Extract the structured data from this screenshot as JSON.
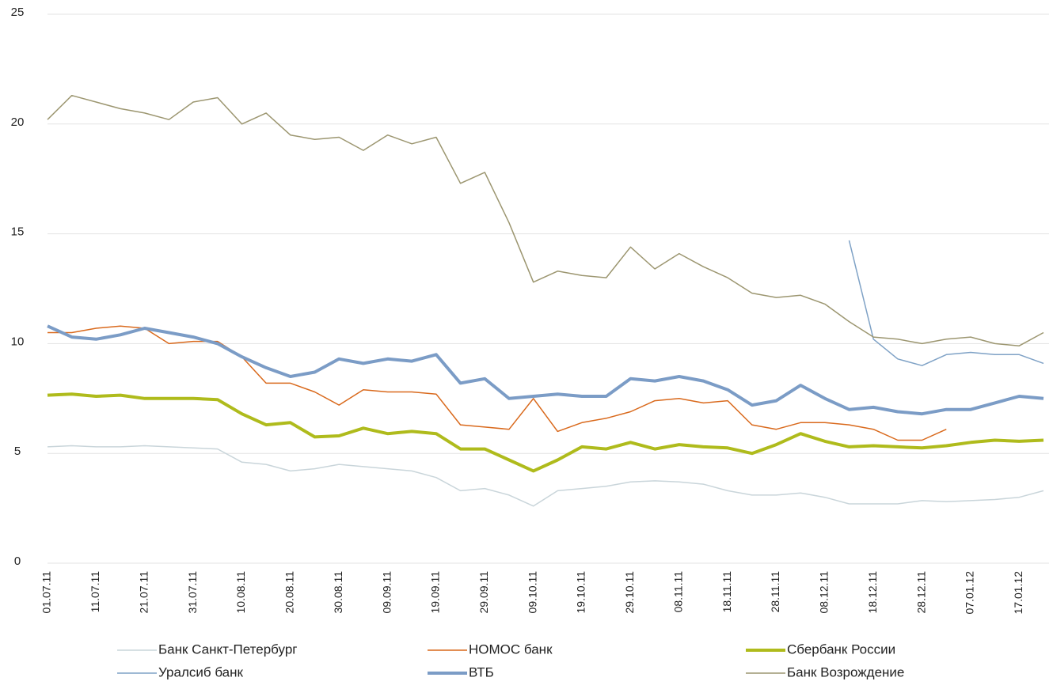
{
  "chart_data": {
    "type": "line",
    "categories": [
      "01.07.11",
      null,
      "11.07.11",
      null,
      "21.07.11",
      null,
      "31.07.11",
      null,
      "10.08.11",
      null,
      "20.08.11",
      null,
      "30.08.11",
      null,
      "09.09.11",
      null,
      "19.09.11",
      null,
      "29.09.11",
      null,
      "09.10.11",
      null,
      "19.10.11",
      null,
      "29.10.11",
      null,
      "08.11.11",
      null,
      "18.11.11",
      null,
      "28.11.11",
      null,
      "08.12.11",
      null,
      "18.12.11",
      null,
      "28.12.11",
      null,
      "07.01.12",
      null,
      "17.01.12",
      null
    ],
    "ylim": [
      0,
      25
    ],
    "yticks": [
      0,
      5,
      10,
      15,
      20,
      25
    ],
    "grid": true,
    "series": [
      {
        "name": "Банк Санкт-Петербург",
        "color": "#c9d5da",
        "width": 1.5,
        "values": [
          5.3,
          5.35,
          5.3,
          5.3,
          5.35,
          5.3,
          5.25,
          5.2,
          4.6,
          4.5,
          4.2,
          4.3,
          4.5,
          4.4,
          4.3,
          4.2,
          3.9,
          3.3,
          3.4,
          3.1,
          2.6,
          3.3,
          3.4,
          3.5,
          3.7,
          3.75,
          3.7,
          3.6,
          3.3,
          3.1,
          3.1,
          3.2,
          3.0,
          2.7,
          2.7,
          2.7,
          2.85,
          2.8,
          2.85,
          2.9,
          3.0,
          3.3
        ]
      },
      {
        "name": "НОМОС банк",
        "color": "#d9691c",
        "width": 1.5,
        "values": [
          10.5,
          10.5,
          10.7,
          10.8,
          10.7,
          10.0,
          10.1,
          10.1,
          9.4,
          8.2,
          8.2,
          7.8,
          7.2,
          7.9,
          7.8,
          7.8,
          7.7,
          6.3,
          6.2,
          6.1,
          7.5,
          6.0,
          6.4,
          6.6,
          6.9,
          7.4,
          7.5,
          7.3,
          7.4,
          6.3,
          6.1,
          6.4,
          6.4,
          6.3,
          6.1,
          5.6,
          5.6,
          6.1,
          null,
          null,
          null,
          null
        ]
      },
      {
        "name": "Сбербанк России",
        "color": "#afbb1c",
        "width": 4,
        "values": [
          7.65,
          7.7,
          7.6,
          7.65,
          7.5,
          7.5,
          7.5,
          7.45,
          6.8,
          6.3,
          6.4,
          5.75,
          5.8,
          6.15,
          5.9,
          6.0,
          5.9,
          5.2,
          5.2,
          4.7,
          4.2,
          4.7,
          5.3,
          5.2,
          5.5,
          5.2,
          5.4,
          5.3,
          5.25,
          5.0,
          5.4,
          5.9,
          5.55,
          5.3,
          5.35,
          5.3,
          5.25,
          5.35,
          5.5,
          5.6,
          5.55,
          5.6
        ]
      },
      {
        "name": "Уралсиб банк",
        "color": "#7fa2c6",
        "width": 1.5,
        "values": [
          null,
          null,
          null,
          null,
          null,
          null,
          null,
          null,
          null,
          null,
          null,
          null,
          null,
          null,
          null,
          null,
          null,
          null,
          null,
          null,
          null,
          null,
          null,
          null,
          null,
          null,
          null,
          null,
          null,
          null,
          null,
          null,
          null,
          14.7,
          10.2,
          9.3,
          9.0,
          9.5,
          9.6,
          9.5,
          9.5,
          9.1
        ]
      },
      {
        "name": "ВТБ",
        "color": "#7b9cc6",
        "width": 4,
        "values": [
          10.8,
          10.3,
          10.2,
          10.4,
          10.7,
          10.5,
          10.3,
          10.0,
          9.4,
          8.9,
          8.5,
          8.7,
          9.3,
          9.1,
          9.3,
          9.2,
          9.5,
          8.2,
          8.4,
          7.5,
          7.6,
          7.7,
          7.6,
          7.6,
          8.4,
          8.3,
          8.5,
          8.3,
          7.9,
          7.2,
          7.4,
          8.1,
          7.5,
          7.0,
          7.1,
          6.9,
          6.8,
          7.0,
          7.0,
          7.3,
          7.6,
          7.5
        ]
      },
      {
        "name": "Банк Возрождение",
        "color": "#9c9670",
        "width": 1.5,
        "values": [
          20.2,
          21.3,
          21.0,
          20.7,
          20.5,
          20.2,
          21.0,
          21.2,
          20.0,
          20.5,
          19.5,
          19.3,
          19.4,
          18.8,
          19.5,
          19.1,
          19.4,
          17.3,
          17.8,
          15.5,
          12.8,
          13.3,
          13.1,
          13.0,
          14.4,
          13.4,
          14.1,
          13.5,
          13.0,
          12.3,
          12.1,
          12.2,
          11.8,
          11.0,
          10.3,
          10.2,
          10.0,
          10.2,
          10.3,
          10.0,
          9.9,
          10.5
        ]
      }
    ]
  }
}
